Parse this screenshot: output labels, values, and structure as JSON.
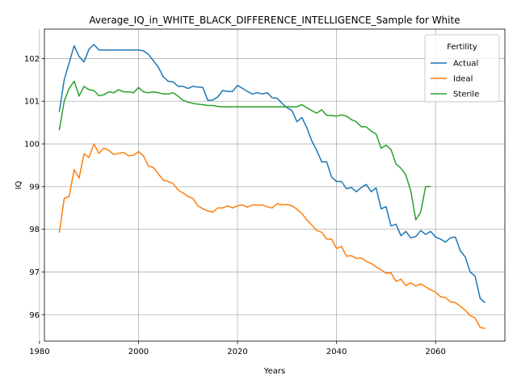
{
  "chart_data": {
    "type": "line",
    "title": "Average_IQ_in_WHITE_BLACK_DIFFERENCE_INTELLIGENCE_Sample for White",
    "xlabel": "Years",
    "ylabel": "IQ",
    "xlim": [
      1981,
      2074
    ],
    "ylim": [
      95.38,
      102.69
    ],
    "xticks": [
      1980,
      2000,
      2020,
      2040,
      2060
    ],
    "yticks": [
      96,
      97,
      98,
      99,
      100,
      101,
      102
    ],
    "grid": true,
    "legend": {
      "title": "Fertility",
      "placement": "top-right"
    },
    "series": [
      {
        "name": "Actual",
        "color": "#1f77b4",
        "x": [
          1984,
          1985,
          1986,
          1987,
          1988,
          1989,
          1990,
          1991,
          1992,
          1993,
          1994,
          1995,
          1996,
          1997,
          1998,
          1999,
          2000,
          2001,
          2002,
          2003,
          2004,
          2005,
          2006,
          2007,
          2008,
          2009,
          2010,
          2011,
          2012,
          2013,
          2014,
          2015,
          2016,
          2017,
          2018,
          2019,
          2020,
          2021,
          2022,
          2023,
          2024,
          2025,
          2026,
          2027,
          2028,
          2029,
          2030,
          2031,
          2032,
          2033,
          2034,
          2035,
          2036,
          2037,
          2038,
          2039,
          2040,
          2041,
          2042,
          2043,
          2044,
          2045,
          2046,
          2047,
          2048,
          2049,
          2050,
          2051,
          2052,
          2053,
          2054,
          2055,
          2056,
          2057,
          2058,
          2059,
          2060,
          2061,
          2062,
          2063,
          2064,
          2065,
          2066,
          2067,
          2068,
          2069,
          2070
        ],
        "values": [
          100.75,
          101.5,
          101.9,
          102.3,
          102.05,
          101.92,
          102.22,
          102.33,
          102.2,
          102.2,
          102.2,
          102.2,
          102.2,
          102.2,
          102.2,
          102.2,
          102.2,
          102.18,
          102.1,
          101.95,
          101.8,
          101.57,
          101.47,
          101.45,
          101.35,
          101.35,
          101.3,
          101.35,
          101.33,
          101.32,
          101.02,
          101.03,
          101.1,
          101.25,
          101.23,
          101.23,
          101.37,
          101.3,
          101.23,
          101.17,
          101.2,
          101.17,
          101.2,
          101.08,
          101.07,
          100.95,
          100.85,
          100.78,
          100.52,
          100.62,
          100.38,
          100.07,
          99.85,
          99.58,
          99.58,
          99.22,
          99.12,
          99.12,
          98.95,
          98.98,
          98.88,
          98.98,
          99.05,
          98.88,
          98.97,
          98.48,
          98.53,
          98.08,
          98.12,
          97.85,
          97.95,
          97.8,
          97.83,
          97.97,
          97.88,
          97.95,
          97.82,
          97.77,
          97.7,
          97.8,
          97.82,
          97.5,
          97.35,
          97.0,
          96.9,
          96.38,
          96.28
        ]
      },
      {
        "name": "Ideal",
        "color": "#ff7f0e",
        "x": [
          1984,
          1985,
          1986,
          1987,
          1988,
          1989,
          1990,
          1991,
          1992,
          1993,
          1994,
          1995,
          1996,
          1997,
          1998,
          1999,
          2000,
          2001,
          2002,
          2003,
          2004,
          2005,
          2006,
          2007,
          2008,
          2009,
          2010,
          2011,
          2012,
          2013,
          2014,
          2015,
          2016,
          2017,
          2018,
          2019,
          2020,
          2021,
          2022,
          2023,
          2024,
          2025,
          2026,
          2027,
          2028,
          2029,
          2030,
          2031,
          2032,
          2033,
          2034,
          2035,
          2036,
          2037,
          2038,
          2039,
          2040,
          2041,
          2042,
          2043,
          2044,
          2045,
          2046,
          2047,
          2048,
          2049,
          2050,
          2051,
          2052,
          2053,
          2054,
          2055,
          2056,
          2057,
          2058,
          2059,
          2060,
          2061,
          2062,
          2063,
          2064,
          2065,
          2066,
          2067,
          2068,
          2069,
          2070
        ],
        "values": [
          97.92,
          98.72,
          98.77,
          99.4,
          99.2,
          99.77,
          99.68,
          100.0,
          99.78,
          99.9,
          99.85,
          99.75,
          99.78,
          99.8,
          99.72,
          99.73,
          99.82,
          99.72,
          99.48,
          99.45,
          99.3,
          99.15,
          99.12,
          99.07,
          98.92,
          98.85,
          98.77,
          98.72,
          98.55,
          98.48,
          98.43,
          98.4,
          98.5,
          98.5,
          98.55,
          98.5,
          98.55,
          98.57,
          98.52,
          98.57,
          98.57,
          98.57,
          98.53,
          98.5,
          98.6,
          98.57,
          98.58,
          98.55,
          98.47,
          98.37,
          98.22,
          98.1,
          97.97,
          97.93,
          97.77,
          97.77,
          97.55,
          97.6,
          97.37,
          97.38,
          97.32,
          97.33,
          97.25,
          97.2,
          97.12,
          97.05,
          96.97,
          96.98,
          96.78,
          96.83,
          96.68,
          96.75,
          96.67,
          96.72,
          96.65,
          96.58,
          96.53,
          96.42,
          96.4,
          96.3,
          96.28,
          96.2,
          96.1,
          95.98,
          95.92,
          95.7,
          95.68
        ]
      },
      {
        "name": "Sterile",
        "color": "#2ca02c",
        "x": [
          1984,
          1985,
          1986,
          1987,
          1988,
          1989,
          1990,
          1991,
          1992,
          1993,
          1994,
          1995,
          1996,
          1997,
          1998,
          1999,
          2000,
          2001,
          2002,
          2003,
          2004,
          2005,
          2006,
          2007,
          2008,
          2009,
          2010,
          2011,
          2012,
          2013,
          2014,
          2015,
          2016,
          2017,
          2018,
          2019,
          2020,
          2021,
          2022,
          2023,
          2024,
          2025,
          2026,
          2027,
          2028,
          2029,
          2030,
          2031,
          2032,
          2033,
          2034,
          2035,
          2036,
          2037,
          2038,
          2039,
          2040,
          2041,
          2042,
          2043,
          2044,
          2045,
          2046,
          2047,
          2048,
          2049,
          2050,
          2051,
          2052,
          2053,
          2054,
          2055,
          2056,
          2057,
          2058,
          2059
        ],
        "values": [
          100.32,
          101.0,
          101.3,
          101.47,
          101.12,
          101.35,
          101.27,
          101.25,
          101.13,
          101.15,
          101.22,
          101.2,
          101.27,
          101.22,
          101.22,
          101.2,
          101.32,
          101.22,
          101.2,
          101.22,
          101.2,
          101.17,
          101.17,
          101.2,
          101.12,
          101.02,
          100.98,
          100.95,
          100.93,
          100.92,
          100.9,
          100.9,
          100.88,
          100.87,
          100.87,
          100.87,
          100.87,
          100.87,
          100.87,
          100.87,
          100.87,
          100.87,
          100.87,
          100.87,
          100.87,
          100.87,
          100.87,
          100.87,
          100.87,
          100.92,
          100.85,
          100.78,
          100.72,
          100.8,
          100.67,
          100.67,
          100.65,
          100.68,
          100.65,
          100.57,
          100.52,
          100.4,
          100.4,
          100.3,
          100.23,
          99.9,
          99.97,
          99.87,
          99.53,
          99.43,
          99.27,
          98.9,
          98.22,
          98.4,
          99.0,
          99.0
        ]
      }
    ]
  }
}
